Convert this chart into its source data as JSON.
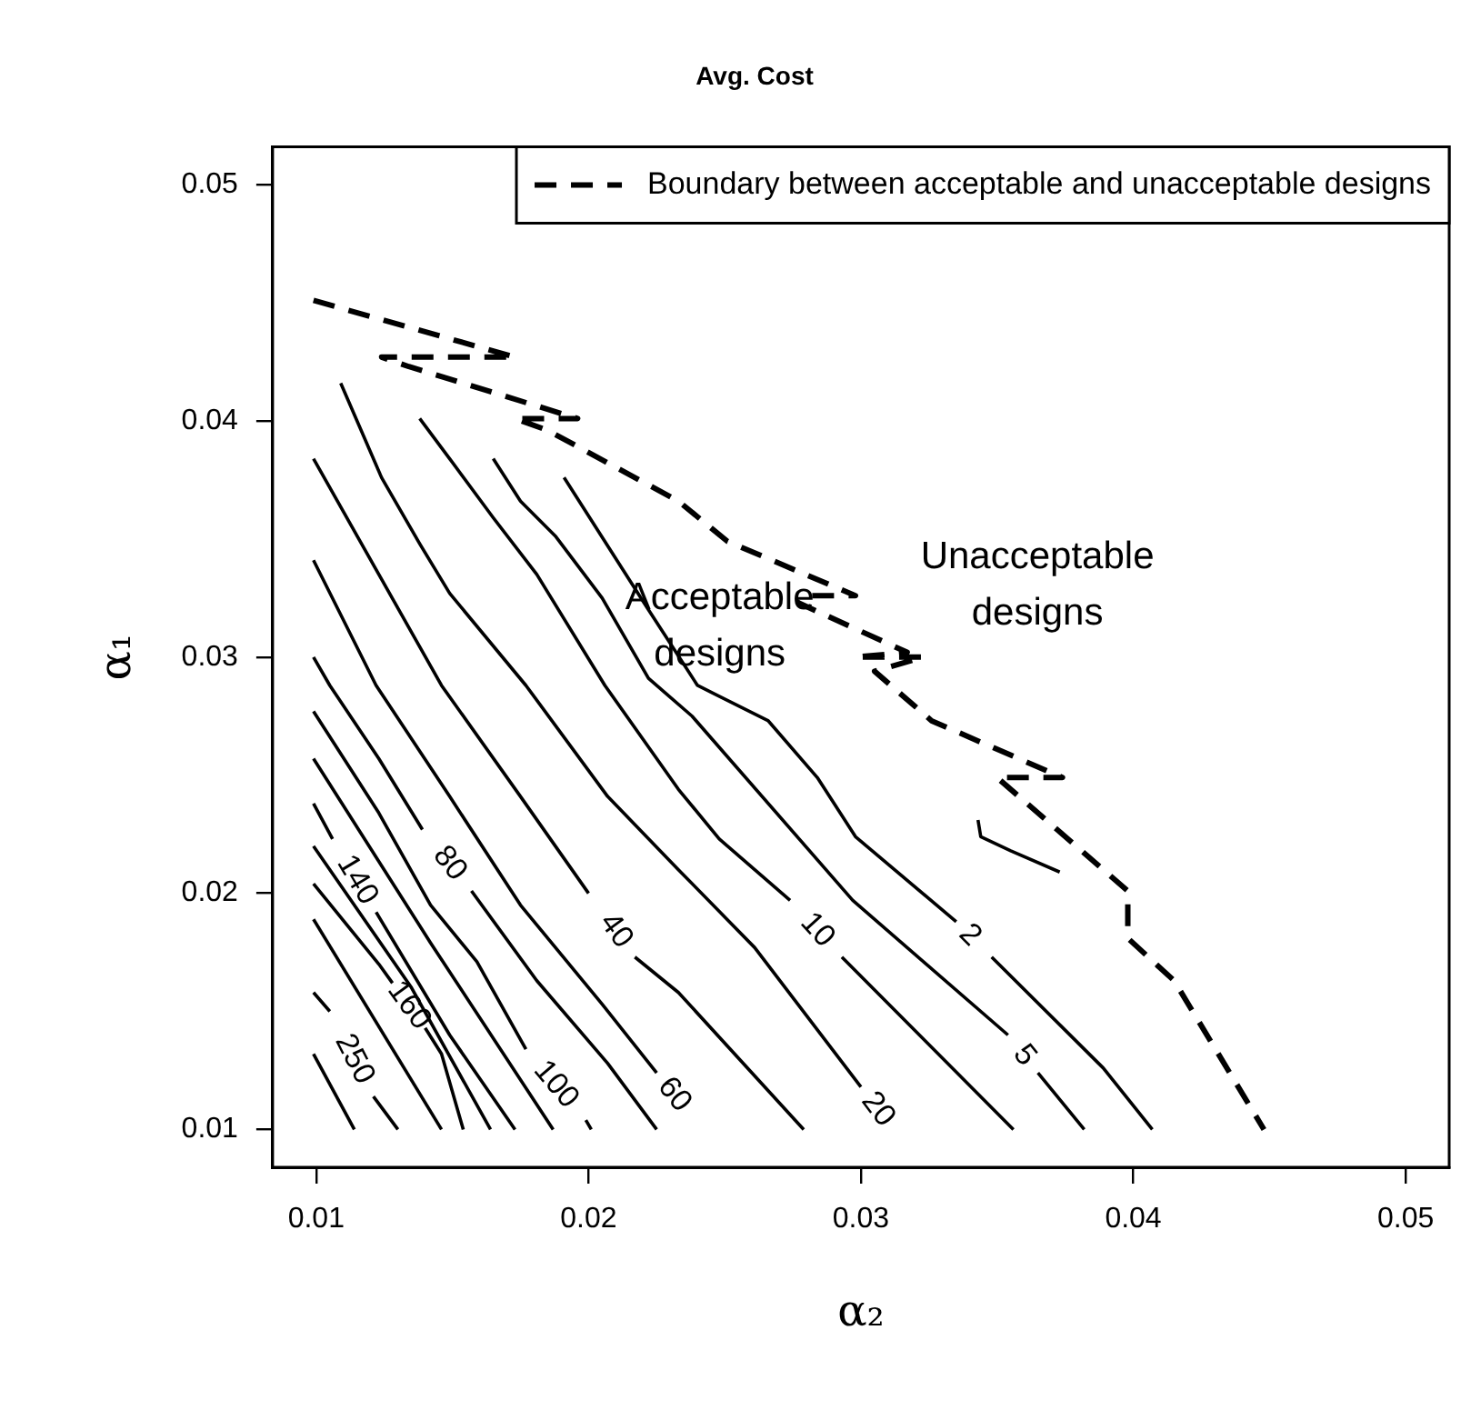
{
  "chart_data": {
    "type": "line",
    "title": "Avg. Cost",
    "xlabel": "α₂",
    "ylabel": "α₁",
    "xlim": [
      0.0084,
      0.0516
    ],
    "ylim": [
      0.0084,
      0.0516
    ],
    "xticks": [
      0.01,
      0.02,
      0.03,
      0.04,
      0.05
    ],
    "yticks": [
      0.01,
      0.02,
      0.03,
      0.04,
      0.05
    ],
    "grid": false,
    "legend": "top right",
    "marker": "none",
    "line_style": "solid",
    "series": [
      {
        "name": "2",
        "color": "#000000",
        "x": [
          0.0191,
          0.0222,
          0.024,
          0.0266,
          0.0284,
          0.0298,
          0.0335,
          0.034,
          0.0348,
          0.0389,
          0.0407
        ],
        "values": [
          0.0376,
          0.032,
          0.0288,
          0.0273,
          0.0249,
          0.0224,
          0.0188,
          null,
          0.0173,
          0.0126,
          0.01
        ]
      },
      {
        "name": "5",
        "color": "#000000",
        "x": [
          0.0165,
          0.0175,
          0.0188,
          0.0205,
          0.0222,
          0.0238,
          0.0297,
          0.0354,
          0.036,
          0.0365,
          0.0382
        ],
        "values": [
          0.0384,
          0.0366,
          0.0351,
          0.0325,
          0.0291,
          0.0275,
          0.0197,
          0.014,
          null,
          0.0124,
          0.01
        ]
      },
      {
        "name": "10",
        "color": "#000000",
        "x": [
          0.0138,
          0.0149,
          0.0165,
          0.0181,
          0.0206,
          0.0233,
          0.0248,
          0.0274,
          0.0284,
          0.0293,
          0.0356
        ],
        "values": [
          0.0401,
          0.0384,
          0.0359,
          0.0335,
          0.0288,
          0.0244,
          0.0223,
          0.0197,
          null,
          0.0173,
          0.01
        ]
      },
      {
        "name": "20",
        "color": "#000000",
        "x": [
          0.0109,
          0.0124,
          0.0138,
          0.0149,
          0.0177,
          0.0207,
          0.0233,
          0.0261,
          0.03
        ],
        "values": [
          0.0416,
          0.0376,
          0.0348,
          0.0327,
          0.0288,
          0.0241,
          0.021,
          0.0177,
          0.0118
        ]
      },
      {
        "name": "40",
        "color": "#000000",
        "x": [
          0.0099,
          0.0123,
          0.0146,
          0.0175,
          0.02,
          0.021,
          0.0217,
          0.0233,
          0.0279
        ],
        "values": [
          0.0384,
          0.0335,
          0.0288,
          0.0241,
          0.02,
          null,
          0.0173,
          0.0158,
          0.01
        ]
      },
      {
        "name": "60",
        "color": "#000000",
        "x": [
          0.0099,
          0.0122,
          0.0149,
          0.0175,
          0.0205,
          0.0225
        ],
        "values": [
          0.0341,
          0.0288,
          0.0241,
          0.0195,
          0.0153,
          0.0124
        ]
      },
      {
        "name": "80",
        "color": "#000000",
        "x": [
          0.0099,
          0.0105,
          0.0123,
          0.0139,
          0.0149,
          0.0157,
          0.0181,
          0.0207,
          0.0225
        ],
        "values": [
          0.03,
          0.0288,
          0.0257,
          0.0227,
          null,
          0.0201,
          0.0163,
          0.0128,
          0.01
        ]
      },
      {
        "name": "100",
        "color": "#000000",
        "x": [
          0.0099,
          0.0123,
          0.0142,
          0.0159,
          0.0177,
          0.0188,
          0.0199,
          0.0201
        ],
        "values": [
          0.0277,
          0.0234,
          0.0195,
          0.0171,
          0.0134,
          null,
          0.0104,
          0.01
        ]
      },
      {
        "color": "#000000",
        "x": [
          0.0099,
          0.0142,
          0.0187
        ],
        "values": [
          0.0257,
          0.0179,
          0.01
        ]
      },
      {
        "name": "140",
        "color": "#000000",
        "x": [
          0.0099,
          0.0106,
          0.0115,
          0.0122,
          0.0149,
          0.0173
        ],
        "values": [
          0.0238,
          0.0223,
          null,
          0.0192,
          0.014,
          0.01
        ]
      },
      {
        "color": "#000000",
        "x": [
          0.0099,
          0.0135,
          0.0164
        ],
        "values": [
          0.022,
          0.016,
          0.01
        ]
      },
      {
        "name": "160",
        "color": "#000000",
        "x": [
          0.0099,
          0.0123,
          0.0128,
          0.0134,
          0.014,
          0.0146,
          0.0154
        ],
        "values": [
          0.0204,
          0.017,
          0.0162,
          null,
          0.0143,
          0.0132,
          0.01
        ]
      },
      {
        "color": "#000000",
        "x": [
          0.0099,
          0.0146
        ],
        "values": [
          0.0189,
          0.01
        ]
      },
      {
        "name": "250",
        "color": "#000000",
        "x": [
          0.0099,
          0.0105,
          0.0114,
          0.0121,
          0.013
        ],
        "values": [
          0.0158,
          0.015,
          null,
          0.0114,
          0.01
        ]
      },
      {
        "color": "#000000",
        "x": [
          0.0099,
          0.0114
        ],
        "values": [
          0.0132,
          0.01
        ]
      },
      {
        "color": "#000000",
        "x": [
          0.0343,
          0.0344,
          0.0355,
          0.0373
        ],
        "values": [
          0.0231,
          0.0224,
          0.0218,
          0.0209
        ]
      },
      {
        "name": "Boundary between acceptable and unacceptable designs",
        "color": "#000000",
        "line_style": "dashed",
        "x": [
          0.0099,
          0.0173,
          0.0124,
          0.0134,
          0.0196,
          0.0173,
          0.0185,
          0.0233,
          0.0251,
          0.0298,
          0.0279,
          0.0277,
          0.0317,
          0.0298,
          0.0323,
          0.0305,
          0.0326,
          0.0374,
          0.035,
          0.0398,
          0.0398,
          0.0415,
          0.0448
        ],
        "values": [
          0.0451,
          0.0427,
          0.0427,
          0.0423,
          0.0401,
          0.0401,
          0.0396,
          0.0366,
          0.0349,
          0.0326,
          0.0326,
          0.0323,
          0.0302,
          0.03,
          0.03,
          0.0294,
          0.0273,
          0.0249,
          0.0249,
          0.0201,
          0.0181,
          0.0163,
          0.01
        ]
      }
    ],
    "annotations": [
      "Acceptable\ndesigns",
      "Unacceptable\ndesigns"
    ]
  }
}
